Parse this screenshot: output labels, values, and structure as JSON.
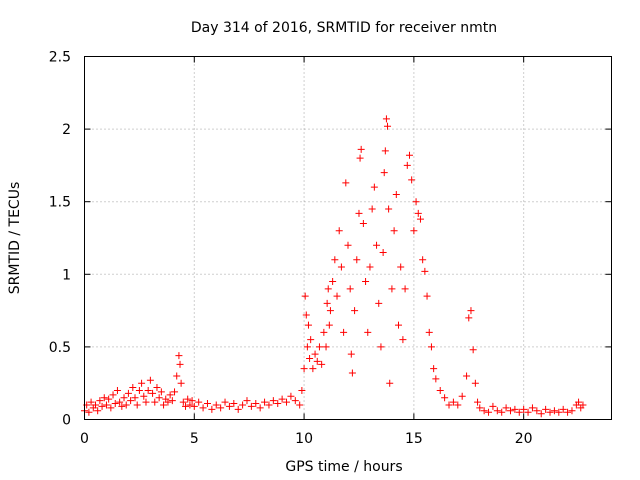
{
  "chart_data": {
    "type": "scatter",
    "title": "Day 314 of 2016, SRMTID for receiver nmtn",
    "xlabel": "GPS time / hours",
    "ylabel": "SRMTID / TECUs",
    "xlim": [
      0,
      24
    ],
    "ylim": [
      0,
      2.5
    ],
    "xticks": [
      0,
      5,
      10,
      15,
      20
    ],
    "xtick_labels": [
      "0",
      "5",
      "10",
      "15",
      "20"
    ],
    "yticks": [
      0,
      0.5,
      1,
      1.5,
      2,
      2.5
    ],
    "ytick_labels": [
      "0",
      "0.5",
      "1",
      "1.5",
      "2",
      "2.5"
    ],
    "grid": true,
    "marker": "plus",
    "series": [
      {
        "name": "SRMTID",
        "color": "#ff0000",
        "points": [
          [
            0.0,
            0.06
          ],
          [
            0.1,
            0.1
          ],
          [
            0.2,
            0.05
          ],
          [
            0.3,
            0.12
          ],
          [
            0.4,
            0.08
          ],
          [
            0.5,
            0.1
          ],
          [
            0.6,
            0.06
          ],
          [
            0.7,
            0.13
          ],
          [
            0.8,
            0.09
          ],
          [
            0.9,
            0.15
          ],
          [
            1.0,
            0.1
          ],
          [
            1.1,
            0.14
          ],
          [
            1.2,
            0.08
          ],
          [
            1.3,
            0.17
          ],
          [
            1.4,
            0.11
          ],
          [
            1.5,
            0.2
          ],
          [
            1.6,
            0.12
          ],
          [
            1.7,
            0.09
          ],
          [
            1.8,
            0.15
          ],
          [
            1.9,
            0.1
          ],
          [
            2.0,
            0.18
          ],
          [
            2.1,
            0.13
          ],
          [
            2.2,
            0.22
          ],
          [
            2.3,
            0.15
          ],
          [
            2.4,
            0.1
          ],
          [
            2.5,
            0.2
          ],
          [
            2.6,
            0.25
          ],
          [
            2.7,
            0.16
          ],
          [
            2.8,
            0.12
          ],
          [
            2.9,
            0.2
          ],
          [
            3.0,
            0.27
          ],
          [
            3.1,
            0.18
          ],
          [
            3.2,
            0.12
          ],
          [
            3.3,
            0.22
          ],
          [
            3.4,
            0.15
          ],
          [
            3.5,
            0.19
          ],
          [
            3.6,
            0.1
          ],
          [
            3.7,
            0.14
          ],
          [
            3.8,
            0.12
          ],
          [
            3.9,
            0.17
          ],
          [
            4.0,
            0.13
          ],
          [
            4.1,
            0.19
          ],
          [
            4.2,
            0.3
          ],
          [
            4.3,
            0.44
          ],
          [
            4.35,
            0.38
          ],
          [
            4.4,
            0.25
          ],
          [
            4.5,
            0.12
          ],
          [
            4.6,
            0.09
          ],
          [
            4.7,
            0.14
          ],
          [
            4.8,
            0.1
          ],
          [
            4.9,
            0.13
          ],
          [
            5.0,
            0.09
          ],
          [
            5.2,
            0.12
          ],
          [
            5.4,
            0.08
          ],
          [
            5.6,
            0.11
          ],
          [
            5.8,
            0.07
          ],
          [
            6.0,
            0.1
          ],
          [
            6.2,
            0.08
          ],
          [
            6.4,
            0.12
          ],
          [
            6.6,
            0.09
          ],
          [
            6.8,
            0.11
          ],
          [
            7.0,
            0.07
          ],
          [
            7.2,
            0.1
          ],
          [
            7.4,
            0.13
          ],
          [
            7.6,
            0.09
          ],
          [
            7.8,
            0.11
          ],
          [
            8.0,
            0.08
          ],
          [
            8.2,
            0.12
          ],
          [
            8.4,
            0.1
          ],
          [
            8.6,
            0.13
          ],
          [
            8.8,
            0.11
          ],
          [
            9.0,
            0.14
          ],
          [
            9.2,
            0.12
          ],
          [
            9.4,
            0.16
          ],
          [
            9.6,
            0.13
          ],
          [
            9.8,
            0.1
          ],
          [
            9.9,
            0.2
          ],
          [
            10.0,
            0.35
          ],
          [
            10.05,
            0.85
          ],
          [
            10.1,
            0.72
          ],
          [
            10.15,
            0.5
          ],
          [
            10.2,
            0.65
          ],
          [
            10.25,
            0.42
          ],
          [
            10.3,
            0.55
          ],
          [
            10.4,
            0.35
          ],
          [
            10.5,
            0.45
          ],
          [
            10.6,
            0.4
          ],
          [
            10.7,
            0.5
          ],
          [
            10.8,
            0.38
          ],
          [
            10.9,
            0.6
          ],
          [
            11.0,
            0.5
          ],
          [
            11.05,
            0.8
          ],
          [
            11.1,
            0.9
          ],
          [
            11.15,
            0.65
          ],
          [
            11.2,
            0.75
          ],
          [
            11.3,
            0.95
          ],
          [
            11.4,
            1.1
          ],
          [
            11.5,
            0.85
          ],
          [
            11.6,
            1.3
          ],
          [
            11.7,
            1.05
          ],
          [
            11.8,
            0.6
          ],
          [
            11.9,
            1.63
          ],
          [
            12.0,
            1.2
          ],
          [
            12.1,
            0.9
          ],
          [
            12.15,
            0.45
          ],
          [
            12.2,
            0.32
          ],
          [
            12.3,
            0.75
          ],
          [
            12.4,
            1.1
          ],
          [
            12.5,
            1.42
          ],
          [
            12.55,
            1.8
          ],
          [
            12.6,
            1.86
          ],
          [
            12.7,
            1.35
          ],
          [
            12.8,
            0.95
          ],
          [
            12.9,
            0.6
          ],
          [
            13.0,
            1.05
          ],
          [
            13.1,
            1.45
          ],
          [
            13.2,
            1.6
          ],
          [
            13.3,
            1.2
          ],
          [
            13.4,
            0.8
          ],
          [
            13.5,
            0.5
          ],
          [
            13.6,
            1.15
          ],
          [
            13.65,
            1.7
          ],
          [
            13.7,
            1.85
          ],
          [
            13.75,
            2.07
          ],
          [
            13.8,
            2.02
          ],
          [
            13.85,
            1.45
          ],
          [
            13.9,
            0.25
          ],
          [
            14.0,
            0.9
          ],
          [
            14.1,
            1.3
          ],
          [
            14.2,
            1.55
          ],
          [
            14.3,
            0.65
          ],
          [
            14.4,
            1.05
          ],
          [
            14.5,
            0.55
          ],
          [
            14.6,
            0.9
          ],
          [
            14.7,
            1.75
          ],
          [
            14.8,
            1.82
          ],
          [
            14.9,
            1.65
          ],
          [
            15.0,
            1.3
          ],
          [
            15.1,
            1.5
          ],
          [
            15.2,
            1.42
          ],
          [
            15.3,
            1.38
          ],
          [
            15.4,
            1.1
          ],
          [
            15.5,
            1.02
          ],
          [
            15.6,
            0.85
          ],
          [
            15.7,
            0.6
          ],
          [
            15.8,
            0.5
          ],
          [
            15.9,
            0.35
          ],
          [
            16.0,
            0.28
          ],
          [
            16.2,
            0.2
          ],
          [
            16.4,
            0.15
          ],
          [
            16.6,
            0.1
          ],
          [
            16.8,
            0.12
          ],
          [
            17.0,
            0.1
          ],
          [
            17.2,
            0.16
          ],
          [
            17.4,
            0.3
          ],
          [
            17.5,
            0.7
          ],
          [
            17.6,
            0.75
          ],
          [
            17.7,
            0.48
          ],
          [
            17.8,
            0.25
          ],
          [
            17.9,
            0.12
          ],
          [
            18.0,
            0.08
          ],
          [
            18.2,
            0.06
          ],
          [
            18.4,
            0.05
          ],
          [
            18.6,
            0.09
          ],
          [
            18.8,
            0.06
          ],
          [
            19.0,
            0.05
          ],
          [
            19.2,
            0.08
          ],
          [
            19.4,
            0.06
          ],
          [
            19.6,
            0.07
          ],
          [
            19.8,
            0.05
          ],
          [
            20.0,
            0.07
          ],
          [
            20.2,
            0.05
          ],
          [
            20.4,
            0.08
          ],
          [
            20.6,
            0.06
          ],
          [
            20.8,
            0.04
          ],
          [
            21.0,
            0.07
          ],
          [
            21.2,
            0.05
          ],
          [
            21.4,
            0.06
          ],
          [
            21.6,
            0.05
          ],
          [
            21.8,
            0.07
          ],
          [
            22.0,
            0.05
          ],
          [
            22.2,
            0.06
          ],
          [
            22.4,
            0.1
          ],
          [
            22.5,
            0.12
          ],
          [
            22.6,
            0.08
          ],
          [
            22.7,
            0.1
          ]
        ]
      }
    ]
  }
}
